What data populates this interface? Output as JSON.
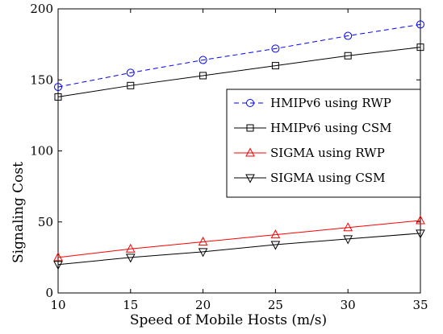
{
  "chart_data": {
    "type": "line",
    "title": "",
    "xlabel": "Speed of Mobile Hosts (m/s)",
    "ylabel": "Signaling Cost",
    "xlim": [
      10,
      35
    ],
    "ylim": [
      0,
      200
    ],
    "xticks": [
      10,
      15,
      20,
      25,
      30,
      35
    ],
    "yticks": [
      0,
      50,
      100,
      150,
      200
    ],
    "grid": false,
    "legend_position": "middle-right",
    "x": [
      10,
      15,
      20,
      25,
      30,
      35
    ],
    "series": [
      {
        "name": "HMIPv6 using RWP",
        "values": [
          145,
          155,
          164,
          172,
          181,
          189
        ],
        "color": "#0000ff",
        "dash": "dashed",
        "marker": "circle"
      },
      {
        "name": "HMIPv6 using CSM",
        "values": [
          138,
          146,
          153,
          160,
          167,
          173
        ],
        "color": "#000000",
        "dash": "solid",
        "marker": "square"
      },
      {
        "name": "SIGMA using RWP",
        "values": [
          25,
          31,
          36,
          41,
          46,
          51
        ],
        "color": "#ff0000",
        "dash": "solid",
        "marker": "triangle-up"
      },
      {
        "name": "SIGMA using CSM",
        "values": [
          20,
          25,
          29,
          34,
          38,
          42
        ],
        "color": "#000000",
        "dash": "solid",
        "marker": "triangle-down"
      }
    ]
  }
}
